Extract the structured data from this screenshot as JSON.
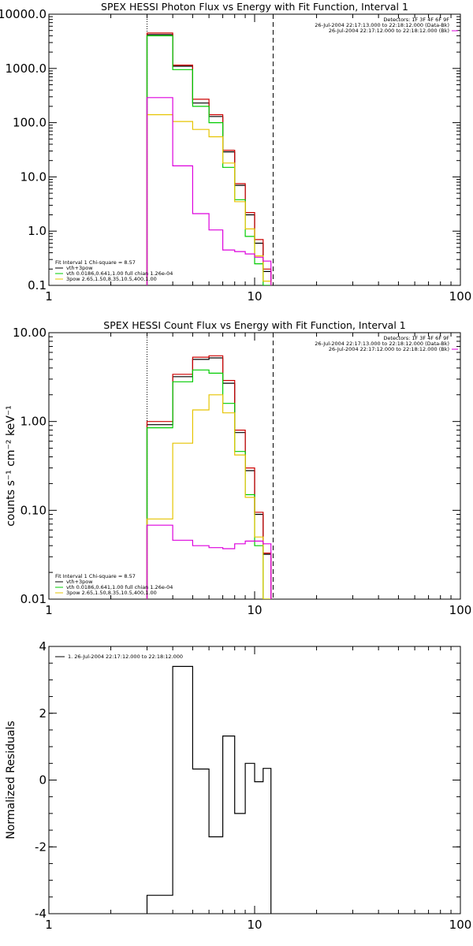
{
  "chart_data": [
    {
      "type": "line",
      "title": "SPEX HESSI Photon Flux vs Energy with Fit Function, Interval 1",
      "xscale": "log",
      "yscale": "log",
      "xlim": [
        1,
        100
      ],
      "ylim": [
        0.1,
        10000
      ],
      "xticks": [
        "1",
        "10",
        "100"
      ],
      "yticks": [
        "0.1",
        "1.0",
        "10.0",
        "100.0",
        "1000.0",
        "10000.0"
      ],
      "ylabel": "",
      "vlines": [
        {
          "x": 3,
          "style": "dotted"
        },
        {
          "x": 12.3,
          "style": "dashed"
        }
      ],
      "annotation": [
        "Detectors: 1F 3F 4F 6F 9F",
        "26-Jul-2004 22:17:13.000 to 22:18:12.000 (Data-Bk)",
        "26-Jul-2004 22:17:12.000 to 22:18:12.000 (Bk)"
      ],
      "legend_header": "Fit Interval 1   Chi-square = 8.57",
      "legend": [
        {
          "label": "vth+3pow",
          "color": "#000000"
        },
        {
          "label": "vth 0.0186,0.641,1.00  full chian 1.26e-04",
          "color": "#00cc00"
        },
        {
          "label": "3pow 2.65,1.50,8.35,10.5,400,1.00",
          "color": "#e6c400"
        }
      ],
      "bin_edges": [
        3,
        4,
        5,
        6,
        7,
        8,
        9,
        10,
        11,
        12
      ],
      "series": [
        {
          "color": "#000000",
          "values": [
            4200,
            1100,
            230,
            130,
            29,
            7,
            2,
            0.6,
            0.18
          ]
        },
        {
          "color": "#cc0000",
          "values": [
            4500,
            1150,
            270,
            140,
            31,
            7.5,
            2.2,
            0.7,
            0.2
          ]
        },
        {
          "color": "#00cc00",
          "values": [
            4000,
            950,
            200,
            100,
            15,
            3.8,
            0.8,
            0.25,
            0.1
          ]
        },
        {
          "color": "#e6c400",
          "values": [
            140,
            105,
            75,
            55,
            18,
            3.5,
            1.1,
            0.35,
            0.12
          ]
        },
        {
          "color": "#dd00dd",
          "values": [
            290,
            16,
            2.1,
            1.05,
            0.45,
            0.42,
            0.38,
            0.33,
            0.28
          ]
        }
      ]
    },
    {
      "type": "line",
      "title": "SPEX HESSI Count Flux vs Energy with Fit Function, Interval 1",
      "xscale": "log",
      "yscale": "log",
      "xlim": [
        1,
        100
      ],
      "ylim": [
        0.01,
        10
      ],
      "xticks": [
        "1",
        "10",
        "100"
      ],
      "yticks": [
        "0.01",
        "0.10",
        "1.00",
        "10.00"
      ],
      "ylabel": "counts s⁻¹ cm⁻² keV⁻¹",
      "vlines": [
        {
          "x": 3,
          "style": "dotted"
        },
        {
          "x": 12.3,
          "style": "dashed"
        }
      ],
      "annotation": [
        "Detectors: 1F 3F 4F 6F 9F",
        "26-Jul-2004 22:17:13.000 to 22:18:12.000 (Data-Bk)",
        "26-Jul-2004 22:17:12.000 to 22:18:12.000 (Bk)"
      ],
      "legend_header": "Fit Interval 1   Chi-square = 8.57",
      "legend": [
        {
          "label": "vth+3pow",
          "color": "#000000"
        },
        {
          "label": "vth 0.0186,0.641,1.00  full chian 1.26e-04",
          "color": "#00cc00"
        },
        {
          "label": "3pow 2.65,1.50,8.35,10.5,400,1.00",
          "color": "#e6c400"
        }
      ],
      "bin_edges": [
        3,
        4,
        5,
        6,
        7,
        8,
        9,
        10,
        11,
        12
      ],
      "series": [
        {
          "color": "#000000",
          "values": [
            0.92,
            3.2,
            5.0,
            5.2,
            2.7,
            0.75,
            0.28,
            0.09,
            0.032
          ]
        },
        {
          "color": "#cc0000",
          "values": [
            1.0,
            3.4,
            5.3,
            5.5,
            2.9,
            0.8,
            0.3,
            0.095,
            0.033
          ]
        },
        {
          "color": "#00cc00",
          "values": [
            0.85,
            2.8,
            3.8,
            3.5,
            1.6,
            0.46,
            0.15,
            0.04,
            0.01
          ]
        },
        {
          "color": "#e6c400",
          "values": [
            0.08,
            0.57,
            1.35,
            2.0,
            1.25,
            0.42,
            0.14,
            0.05,
            0.01
          ]
        },
        {
          "color": "#dd00dd",
          "values": [
            0.068,
            0.046,
            0.04,
            0.038,
            0.037,
            0.042,
            0.045,
            0.045,
            0.042
          ]
        }
      ]
    },
    {
      "type": "line",
      "title": "",
      "xscale": "log",
      "yscale": "linear",
      "xlim": [
        1,
        100
      ],
      "ylim": [
        -4,
        4
      ],
      "xticks": [
        "1",
        "10",
        "100"
      ],
      "yticks": [
        "-4",
        "-2",
        "0",
        "2",
        "4"
      ],
      "ylabel": "Normalized Residuals",
      "legend": [
        {
          "label": "1. 26-Jul-2004 22:17:12.000 to 22:18:12.000",
          "color": "#000000"
        }
      ],
      "bin_edges": [
        3,
        4,
        5,
        6,
        7,
        8,
        9,
        10,
        11,
        12
      ],
      "series": [
        {
          "color": "#000000",
          "values": [
            -3.45,
            3.4,
            0.33,
            -1.7,
            1.32,
            -1.0,
            0.5,
            -0.05,
            0.35
          ]
        }
      ]
    }
  ]
}
